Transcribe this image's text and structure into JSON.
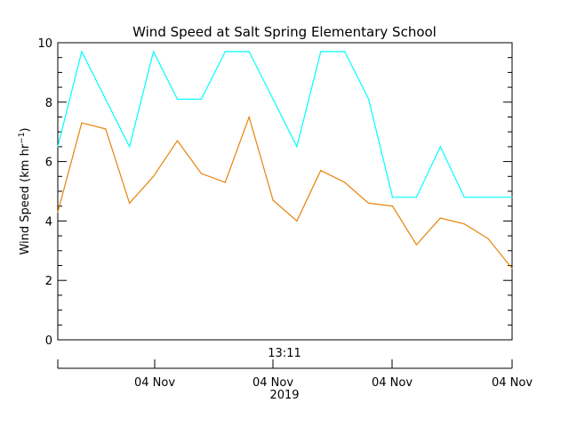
{
  "chart_data": {
    "type": "line",
    "title": "Wind Speed at Salt Spring Elementary School",
    "ylabel_main": "Wind Speed (km hr",
    "ylabel_sup": "−1",
    "ylabel_close": ")",
    "ylim": [
      0,
      10
    ],
    "y_ticks": [
      0,
      2,
      4,
      6,
      8,
      10
    ],
    "x_top_label": "13:11",
    "x_tick_labels": [
      "04 Nov",
      "04 Nov",
      "04 Nov",
      "04 Nov"
    ],
    "x_year_label": "2019",
    "grid": false,
    "series": [
      {
        "color": "#00ffff",
        "values": [
          6.5,
          9.7,
          8.1,
          6.5,
          9.7,
          8.1,
          8.1,
          9.7,
          9.7,
          8.1,
          6.5,
          9.7,
          9.7,
          8.1,
          4.8,
          4.8,
          6.5,
          4.8,
          4.8,
          4.8
        ]
      },
      {
        "color": "#e6820a",
        "values": [
          4.3,
          7.3,
          7.1,
          4.6,
          5.5,
          6.7,
          5.6,
          5.3,
          7.5,
          4.7,
          4.0,
          5.7,
          5.3,
          4.6,
          4.5,
          3.2,
          4.1,
          3.9,
          3.4,
          2.4
        ]
      }
    ]
  }
}
